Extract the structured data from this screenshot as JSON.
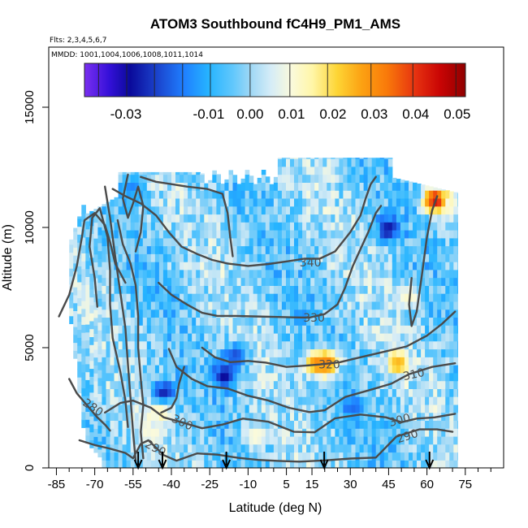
{
  "chart_data": {
    "type": "heatmap",
    "title": "ATOM3 Southbound fC4H9_PM1_AMS",
    "flights_label": "Flts: 2,3,4,5,6,7",
    "dates_label": "MMDD: 1001,1004,1006,1008,1011,1014",
    "xlabel": "Latitude (deg N)",
    "ylabel": "Altitude (m)",
    "xlim": [
      -88,
      90
    ],
    "ylim": [
      0,
      17500
    ],
    "x_ticks": [
      -85,
      -70,
      -55,
      -40,
      -25,
      -10,
      5,
      15,
      30,
      45,
      60,
      75
    ],
    "x_minor_ticks": [
      -80,
      -75,
      -65,
      -60,
      -50,
      -45,
      -35,
      -30,
      -20,
      -15,
      -5,
      0,
      10,
      20,
      25,
      35,
      40,
      50,
      55,
      65,
      70,
      80,
      85
    ],
    "y_ticks": [
      0,
      5000,
      10000,
      15000
    ],
    "colorbar": {
      "min": -0.04,
      "max": 0.052,
      "tick_values": [
        -0.03,
        -0.01,
        0.0,
        0.01,
        0.02,
        0.03,
        0.04,
        0.05
      ],
      "tick_labels": [
        "-0.03",
        "-0.01",
        "0.00",
        "0.01",
        "0.02",
        "0.03",
        "0.04",
        "0.05"
      ],
      "divider_values": [
        -0.0366,
        -0.0298,
        -0.0231,
        -0.0163,
        -0.0096,
        0.0,
        0.0096,
        0.0187,
        0.0292,
        0.0393,
        0.0497
      ],
      "color_stops": [
        {
          "value": -0.04,
          "color": "#7a2ff0"
        },
        {
          "value": -0.034,
          "color": "#3410d8"
        },
        {
          "value": -0.029,
          "color": "#0a0a9a"
        },
        {
          "value": -0.023,
          "color": "#1a3ec8"
        },
        {
          "value": -0.016,
          "color": "#1f7fff"
        },
        {
          "value": -0.01,
          "color": "#26b4ff"
        },
        {
          "value": -0.004,
          "color": "#63c8fc"
        },
        {
          "value": 0.0,
          "color": "#9dd7f5"
        },
        {
          "value": 0.005,
          "color": "#d5ecf7"
        },
        {
          "value": 0.01,
          "color": "#fafadc"
        },
        {
          "value": 0.015,
          "color": "#fff6a8"
        },
        {
          "value": 0.021,
          "color": "#fdd535"
        },
        {
          "value": 0.027,
          "color": "#fca112"
        },
        {
          "value": 0.033,
          "color": "#f97a0a"
        },
        {
          "value": 0.04,
          "color": "#e63110"
        },
        {
          "value": 0.046,
          "color": "#c80404"
        },
        {
          "value": 0.052,
          "color": "#8f0000"
        }
      ]
    },
    "contour_levels": [
      280,
      290,
      300,
      310,
      320,
      330,
      340
    ],
    "contours": [
      {
        "label": "280",
        "label_at": [
          -70.6,
          2520
        ],
        "label_angle": 35,
        "points": [
          [
            -80,
            3700
          ],
          [
            -77,
            3100
          ],
          [
            -73,
            2600
          ],
          [
            -69,
            2100
          ],
          [
            -66,
            1800
          ],
          [
            -64,
            1550
          ]
        ]
      },
      {
        "label": "290",
        "label_at": [
          -46.2,
          830
        ],
        "label_angle": 28,
        "points": [
          [
            -76,
            1150
          ],
          [
            -70,
            950
          ],
          [
            -64,
            800
          ],
          [
            -58,
            620
          ],
          [
            -55,
            400
          ],
          [
            -52,
            1000
          ],
          [
            -49,
            1150
          ],
          [
            -43,
            530
          ],
          [
            -38,
            300
          ],
          [
            -30,
            600
          ],
          [
            -22,
            550
          ],
          [
            -14,
            420
          ],
          [
            -6,
            330
          ],
          [
            2,
            290
          ],
          [
            10,
            260
          ],
          [
            20,
            310
          ],
          [
            30,
            390
          ],
          [
            40,
            430
          ],
          [
            48,
            1300
          ],
          [
            57,
            1600
          ],
          [
            64,
            1600
          ],
          [
            70,
            1500
          ]
        ]
      },
      {
        "label": "290",
        "label_at": [
          52.3,
          1330
        ],
        "label_angle": -18,
        "points": []
      },
      {
        "label": "300",
        "label_at": [
          -35.7,
          1900
        ],
        "label_angle": 25,
        "points": [
          [
            -66,
            2300
          ],
          [
            -60,
            2700
          ],
          [
            -55,
            2800
          ],
          [
            -48,
            2500
          ],
          [
            -43,
            2100
          ],
          [
            -36,
            1900
          ],
          [
            -28,
            1650
          ],
          [
            -20,
            1800
          ],
          [
            -12,
            2050
          ],
          [
            -2,
            1920
          ],
          [
            8,
            1500
          ],
          [
            16,
            1480
          ],
          [
            24,
            2060
          ],
          [
            34,
            2220
          ],
          [
            44,
            2100
          ],
          [
            50,
            1900
          ],
          [
            56,
            2050
          ],
          [
            63,
            2100
          ],
          [
            71,
            2250
          ]
        ]
      },
      {
        "label": "300",
        "label_at": [
          49.3,
          2000
        ],
        "label_angle": -15,
        "points": []
      },
      {
        "label": "310",
        "label_at": [
          54.8,
          3900
        ],
        "label_angle": -12,
        "points": [
          [
            -41,
            4950
          ],
          [
            -38,
            4200
          ],
          [
            -32,
            3700
          ],
          [
            -26,
            3400
          ],
          [
            -18,
            3300
          ],
          [
            -10,
            3000
          ],
          [
            -2,
            2800
          ],
          [
            6,
            2500
          ],
          [
            14,
            2320
          ],
          [
            20,
            2400
          ],
          [
            28,
            2950
          ],
          [
            38,
            3250
          ],
          [
            46,
            3500
          ],
          [
            53,
            3900
          ],
          [
            62,
            4200
          ],
          [
            71,
            4350
          ]
        ]
      },
      {
        "label": "320",
        "label_at": [
          21.8,
          4300
        ],
        "label_angle": 0,
        "points": [
          [
            -28,
            5000
          ],
          [
            -23,
            4600
          ],
          [
            -17,
            4400
          ],
          [
            -10,
            4450
          ],
          [
            -3,
            4380
          ],
          [
            5,
            4200
          ],
          [
            12,
            4250
          ],
          [
            18,
            4300
          ],
          [
            26,
            4400
          ],
          [
            34,
            4600
          ],
          [
            42,
            4800
          ],
          [
            52,
            5050
          ],
          [
            60,
            5500
          ],
          [
            66,
            6000
          ],
          [
            71,
            6500
          ]
        ]
      },
      {
        "label": "330",
        "label_at": [
          15.8,
          6250
        ],
        "label_angle": 0,
        "points": [
          [
            -45,
            7700
          ],
          [
            -40,
            7200
          ],
          [
            -34,
            6800
          ],
          [
            -28,
            6450
          ],
          [
            -22,
            6320
          ],
          [
            -15,
            6320
          ],
          [
            -8,
            6300
          ],
          [
            0,
            6280
          ],
          [
            8,
            6260
          ],
          [
            14,
            6250
          ],
          [
            20,
            6400
          ],
          [
            25,
            6800
          ],
          [
            28,
            7500
          ],
          [
            31,
            8400
          ],
          [
            34,
            9100
          ],
          [
            37,
            9800
          ],
          [
            40,
            10600
          ],
          [
            42,
            10900
          ]
        ]
      },
      {
        "label": "340",
        "label_at": [
          14.4,
          8550
        ],
        "label_angle": 0,
        "points": [
          [
            -63,
            11600
          ],
          [
            -58,
            11300
          ],
          [
            -52,
            11000
          ],
          [
            -46,
            10500
          ],
          [
            -41,
            9800
          ],
          [
            -36,
            9200
          ],
          [
            -30,
            8900
          ],
          [
            -24,
            8650
          ],
          [
            -18,
            8500
          ],
          [
            -10,
            8400
          ],
          [
            -2,
            8480
          ],
          [
            6,
            8600
          ],
          [
            12,
            8700
          ],
          [
            18,
            8700
          ],
          [
            24,
            9000
          ],
          [
            30,
            9800
          ],
          [
            34,
            10500
          ],
          [
            36,
            11200
          ],
          [
            38,
            11800
          ],
          [
            40,
            12100
          ]
        ]
      },
      {
        "label": "",
        "label_at": [
          0,
          0
        ],
        "label_angle": 0,
        "points": [
          [
            -52,
            12100
          ],
          [
            -46,
            11900
          ],
          [
            -40,
            11800
          ],
          [
            -34,
            11700
          ],
          [
            -26,
            11600
          ],
          [
            -20,
            11400
          ],
          [
            -18,
            10600
          ],
          [
            -17,
            9600
          ],
          [
            -16,
            8800
          ]
        ]
      },
      {
        "label": "",
        "label_at": [
          0,
          0
        ],
        "label_angle": 0,
        "points": [
          [
            -84,
            6300
          ],
          [
            -80,
            7200
          ],
          [
            -77,
            8400
          ],
          [
            -75,
            9600
          ],
          [
            -74,
            10300
          ],
          [
            -70,
            10600
          ],
          [
            -66,
            10100
          ],
          [
            -64,
            9400
          ],
          [
            -62,
            8500
          ],
          [
            -58,
            7700
          ]
        ]
      },
      {
        "label": "",
        "label_at": [
          0,
          0
        ],
        "label_angle": 0,
        "points": [
          [
            -69,
            6700
          ],
          [
            -70,
            7900
          ],
          [
            -72,
            9200
          ],
          [
            -71,
            10400
          ],
          [
            -68,
            10800
          ],
          [
            -65,
            9600
          ],
          [
            -64,
            8200
          ],
          [
            -64,
            6800
          ],
          [
            -63,
            5400
          ],
          [
            -60,
            4000
          ],
          [
            -58,
            2800
          ],
          [
            -57,
            1700
          ]
        ]
      },
      {
        "label": "",
        "label_at": [
          0,
          0
        ],
        "label_angle": 0,
        "points": [
          [
            -66,
            11700
          ],
          [
            -64,
            10400
          ],
          [
            -62,
            8800
          ],
          [
            -60,
            7300
          ],
          [
            -58,
            5800
          ],
          [
            -57,
            4300
          ],
          [
            -56,
            2900
          ],
          [
            -55,
            1500
          ],
          [
            -54,
            300
          ]
        ]
      },
      {
        "label": "",
        "label_at": [
          0,
          0
        ],
        "label_angle": 0,
        "points": [
          [
            -61,
            10300
          ],
          [
            -59,
            9300
          ],
          [
            -56,
            8500
          ],
          [
            -54,
            7600
          ],
          [
            -53,
            6300
          ],
          [
            -53,
            5000
          ],
          [
            -52,
            3700
          ],
          [
            -51,
            2600
          ],
          [
            -52,
            1500
          ],
          [
            -51,
            400
          ]
        ]
      },
      {
        "label": "",
        "label_at": [
          0,
          0
        ],
        "label_angle": 0,
        "points": [
          [
            -57,
            12200
          ],
          [
            -59,
            11200
          ],
          [
            -57,
            10400
          ],
          [
            -55,
            11000
          ],
          [
            -53,
            11700
          ],
          [
            -51,
            10900
          ],
          [
            -52,
            9800
          ],
          [
            -54,
            9000
          ]
        ]
      },
      {
        "label": "",
        "label_at": [
          0,
          0
        ],
        "label_angle": 0,
        "points": [
          [
            54,
            7900
          ],
          [
            53,
            6800
          ],
          [
            54,
            5900
          ],
          [
            56,
            6500
          ],
          [
            58,
            8000
          ],
          [
            60,
            9600
          ],
          [
            62,
            10700
          ],
          [
            64,
            11300
          ]
        ]
      },
      {
        "label": "",
        "label_at": [
          0,
          0
        ],
        "label_angle": 0,
        "points": [
          [
            -35,
            4200
          ],
          [
            -37,
            3500
          ],
          [
            -38,
            2900
          ],
          [
            -40,
            2500
          ],
          [
            -44,
            2300
          ]
        ]
      }
    ],
    "flight_arrows_lat": [
      -53,
      -43.5,
      -18.5,
      19.8,
      61
    ],
    "heatmap_lat_range": [
      -80,
      72
    ],
    "heatmap_alt_range": [
      0,
      12900
    ],
    "hotspots": [
      {
        "lat": 20,
        "alt": 4200,
        "value": 0.033
      },
      {
        "lat": 16,
        "alt": 4200,
        "value": 0.03
      },
      {
        "lat": 62.5,
        "alt": 11000,
        "value": 0.045
      },
      {
        "lat": 48,
        "alt": 4200,
        "value": 0.025
      },
      {
        "lat": 52,
        "alt": 7000,
        "value": 0.012
      },
      {
        "lat": -20,
        "alt": 3700,
        "value": -0.03
      },
      {
        "lat": -16,
        "alt": 4500,
        "value": -0.022
      },
      {
        "lat": 44,
        "alt": 9800,
        "value": -0.028
      },
      {
        "lat": -45,
        "alt": 2300,
        "value": 0.018
      },
      {
        "lat": -44,
        "alt": 3000,
        "value": -0.026
      },
      {
        "lat": -48,
        "alt": 1300,
        "value": 0.01
      },
      {
        "lat": -56,
        "alt": 11500,
        "value": -0.015
      },
      {
        "lat": 30,
        "alt": 2300,
        "value": -0.018
      },
      {
        "lat": -8,
        "alt": 1200,
        "value": 0.011
      }
    ]
  }
}
